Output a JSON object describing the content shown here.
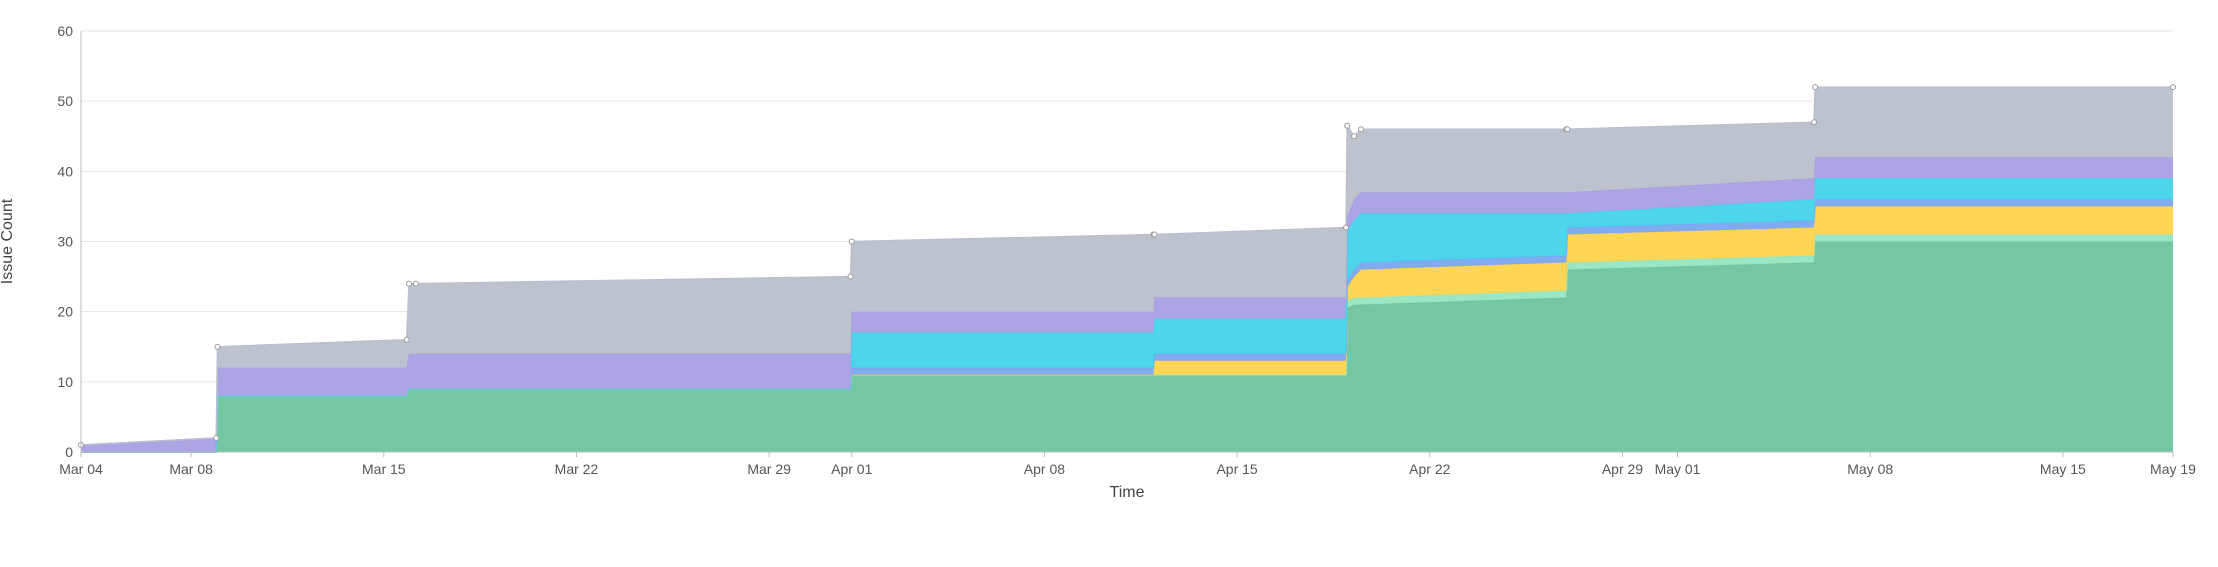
{
  "chart_data": {
    "type": "area",
    "stacked": true,
    "step": true,
    "xlabel": "Time",
    "ylabel": "Issue Count",
    "ylim": [
      0,
      60
    ],
    "xlim": [
      "2024-03-04",
      "2024-05-19"
    ],
    "grid": true,
    "legend": "none",
    "y_ticks": [
      0,
      10,
      20,
      30,
      40,
      50,
      60
    ],
    "x_ticks": [
      {
        "date": "2024-03-04",
        "label": "Mar 04"
      },
      {
        "date": "2024-03-08",
        "label": "Mar 08"
      },
      {
        "date": "2024-03-15",
        "label": "Mar 15"
      },
      {
        "date": "2024-03-22",
        "label": "Mar 22"
      },
      {
        "date": "2024-03-29",
        "label": "Mar 29"
      },
      {
        "date": "2024-04-01",
        "label": "Apr 01"
      },
      {
        "date": "2024-04-08",
        "label": "Apr 08"
      },
      {
        "date": "2024-04-15",
        "label": "Apr 15"
      },
      {
        "date": "2024-04-22",
        "label": "Apr 22"
      },
      {
        "date": "2024-04-29",
        "label": "Apr 29"
      },
      {
        "date": "2024-05-01",
        "label": "May 01"
      },
      {
        "date": "2024-05-08",
        "label": "May 08"
      },
      {
        "date": "2024-05-15",
        "label": "May 15"
      },
      {
        "date": "2024-05-19",
        "label": "May 19"
      }
    ],
    "x": [
      "2024-03-04",
      "2024-03-08 22:00",
      "2024-03-08 23:00",
      "2024-03-15 20:00",
      "2024-03-15 22:00",
      "2024-03-16 04:00",
      "2024-03-31 23:00",
      "2024-04-01 00:00",
      "2024-04-11 23:00",
      "2024-04-12 00:00",
      "2024-04-18 23:00",
      "2024-04-19 00:00",
      "2024-04-19 06:00",
      "2024-04-19 12:00",
      "2024-04-26 23:00",
      "2024-04-27 00:00",
      "2024-05-05 23:00",
      "2024-05-06 00:00",
      "2024-05-19 00:00"
    ],
    "series": [
      {
        "color": "#6cc59e",
        "values": [
          0,
          0,
          8,
          8,
          9,
          9,
          9,
          11,
          11,
          11,
          11,
          20.5,
          21,
          21,
          22,
          26,
          27,
          30,
          30
        ]
      },
      {
        "color": "#96e5c0",
        "values": [
          0,
          0,
          0,
          0,
          0,
          0,
          0,
          0,
          0,
          0,
          0,
          1,
          1,
          1,
          1,
          1,
          1,
          1,
          1
        ]
      },
      {
        "color": "#ffd34d",
        "values": [
          0,
          0,
          0,
          0,
          0,
          0,
          0,
          0,
          0,
          2,
          2,
          2,
          3,
          4,
          4,
          4,
          4,
          4,
          4
        ]
      },
      {
        "color": "#7aa7f0",
        "values": [
          0,
          0,
          0,
          0,
          0,
          0,
          0,
          1,
          1,
          1,
          1,
          1,
          1,
          1,
          1,
          1,
          1,
          1,
          1
        ]
      },
      {
        "color": "#43d4ea",
        "values": [
          0,
          0,
          0,
          0,
          0,
          0,
          0,
          5,
          5,
          5,
          5,
          7,
          7,
          7,
          6,
          2,
          3,
          3,
          3
        ]
      },
      {
        "color": "#a89fe3",
        "values": [
          1,
          2,
          4,
          4,
          5,
          5,
          5,
          3,
          3,
          3,
          3,
          2,
          3,
          3,
          3,
          3,
          3,
          3,
          3
        ]
      },
      {
        "color": "#b9bfcc",
        "values": [
          0,
          0,
          3,
          4,
          10,
          10,
          11,
          10,
          11,
          9,
          10,
          13,
          9,
          9,
          9,
          9,
          8,
          10,
          10
        ]
      }
    ]
  }
}
